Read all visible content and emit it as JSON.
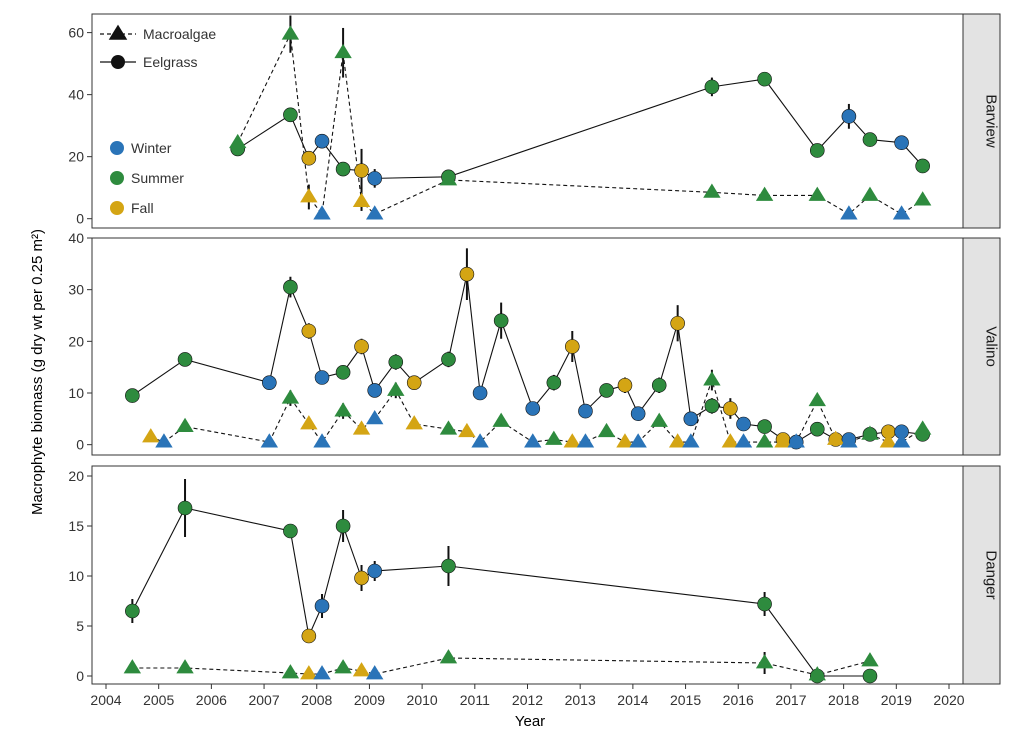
{
  "colors": {
    "Winter": "#2a74b8",
    "Summer": "#2e8b3e",
    "Fall": "#d4a514",
    "panel_border": "#333333",
    "strip_bg": "#e3e3e3"
  },
  "chart_data": {
    "type": "scatter",
    "xlabel": "Year",
    "ylabel": "Macrophyte biomass (g dry wt per 0.25 m²)",
    "xlim": [
      2004,
      2020
    ],
    "x_ticks": [
      2004,
      2005,
      2006,
      2007,
      2008,
      2009,
      2010,
      2011,
      2012,
      2013,
      2014,
      2015,
      2016,
      2017,
      2018,
      2019,
      2020
    ],
    "x_tick_labels": [
      "2004",
      "2005",
      "2006",
      "2007",
      "2008",
      "2009",
      "2010",
      "2011",
      "2012",
      "2013",
      "2014",
      "2015",
      "2016",
      "2017",
      "2018",
      "2019",
      "2020"
    ],
    "legend_type": [
      {
        "label": "Macroalgae",
        "marker": "triangle",
        "line": "dashed"
      },
      {
        "label": "Eelgrass",
        "marker": "circle",
        "line": "solid"
      }
    ],
    "legend_season": [
      {
        "label": "Winter",
        "color": "#2a74b8"
      },
      {
        "label": "Summer",
        "color": "#2e8b3e"
      },
      {
        "label": "Fall",
        "color": "#d4a514"
      }
    ],
    "panels": [
      {
        "site": "Barview",
        "ylim": [
          -3,
          66
        ],
        "y_ticks": [
          0,
          20,
          40,
          60
        ],
        "y_tick_labels": [
          "0",
          "20",
          "40",
          "60"
        ],
        "series": [
          {
            "name": "Eelgrass",
            "points": [
              {
                "x": 2006.5,
                "y": 22.5,
                "season": "Summer"
              },
              {
                "x": 2007.5,
                "y": 33.5,
                "season": "Summer",
                "err": 2
              },
              {
                "x": 2007.85,
                "y": 19.5,
                "season": "Fall"
              },
              {
                "x": 2008.1,
                "y": 25,
                "season": "Winter"
              },
              {
                "x": 2008.5,
                "y": 16,
                "season": "Summer"
              },
              {
                "x": 2008.85,
                "y": 15.5,
                "season": "Fall",
                "err": 7
              },
              {
                "x": 2009.1,
                "y": 13,
                "season": "Winter",
                "err": 3
              },
              {
                "x": 2010.5,
                "y": 13.5,
                "season": "Summer"
              },
              {
                "x": 2015.5,
                "y": 42.5,
                "season": "Summer",
                "err": 3
              },
              {
                "x": 2016.5,
                "y": 45,
                "season": "Summer",
                "err": 2
              },
              {
                "x": 2017.5,
                "y": 22,
                "season": "Summer"
              },
              {
                "x": 2018.1,
                "y": 33,
                "season": "Winter",
                "err": 4
              },
              {
                "x": 2018.5,
                "y": 25.5,
                "season": "Summer"
              },
              {
                "x": 2019.1,
                "y": 24.5,
                "season": "Winter"
              },
              {
                "x": 2019.5,
                "y": 17,
                "season": "Summer"
              }
            ]
          },
          {
            "name": "Macroalgae",
            "points": [
              {
                "x": 2006.5,
                "y": 24.5,
                "season": "Summer"
              },
              {
                "x": 2007.5,
                "y": 59.5,
                "season": "Summer",
                "err": 6
              },
              {
                "x": 2007.85,
                "y": 7,
                "season": "Fall",
                "err": 4
              },
              {
                "x": 2008.1,
                "y": 1.5,
                "season": "Winter"
              },
              {
                "x": 2008.5,
                "y": 53.5,
                "season": "Summer",
                "err": 8
              },
              {
                "x": 2008.85,
                "y": 5.5,
                "season": "Fall",
                "err": 3
              },
              {
                "x": 2009.1,
                "y": 1.5,
                "season": "Winter"
              },
              {
                "x": 2010.5,
                "y": 12.5,
                "season": "Summer"
              },
              {
                "x": 2015.5,
                "y": 8.5,
                "season": "Summer"
              },
              {
                "x": 2016.5,
                "y": 7.5,
                "season": "Summer"
              },
              {
                "x": 2017.5,
                "y": 7.5,
                "season": "Summer"
              },
              {
                "x": 2018.1,
                "y": 1.5,
                "season": "Winter"
              },
              {
                "x": 2018.5,
                "y": 7.5,
                "season": "Summer"
              },
              {
                "x": 2019.1,
                "y": 1.5,
                "season": "Winter"
              },
              {
                "x": 2019.5,
                "y": 6,
                "season": "Summer"
              }
            ]
          }
        ]
      },
      {
        "site": "Valino",
        "ylim": [
          -2,
          40
        ],
        "y_ticks": [
          0,
          10,
          20,
          30,
          40
        ],
        "y_tick_labels": [
          "0",
          "10",
          "20",
          "30",
          "40"
        ],
        "series": [
          {
            "name": "Eelgrass",
            "points": [
              {
                "x": 2004.5,
                "y": 9.5,
                "season": "Summer"
              },
              {
                "x": 2005.5,
                "y": 16.5,
                "season": "Summer"
              },
              {
                "x": 2007.1,
                "y": 12,
                "season": "Winter"
              },
              {
                "x": 2007.5,
                "y": 30.5,
                "season": "Summer",
                "err": 2
              },
              {
                "x": 2007.85,
                "y": 22,
                "season": "Fall",
                "err": 1.5
              },
              {
                "x": 2008.1,
                "y": 13,
                "season": "Winter"
              },
              {
                "x": 2008.5,
                "y": 14,
                "season": "Summer"
              },
              {
                "x": 2008.85,
                "y": 19,
                "season": "Fall",
                "err": 1.5
              },
              {
                "x": 2009.1,
                "y": 10.5,
                "season": "Winter"
              },
              {
                "x": 2009.5,
                "y": 16,
                "season": "Summer",
                "err": 1.5
              },
              {
                "x": 2009.85,
                "y": 12,
                "season": "Fall"
              },
              {
                "x": 2010.5,
                "y": 16.5,
                "season": "Summer",
                "err": 1.5
              },
              {
                "x": 2010.85,
                "y": 33,
                "season": "Fall",
                "err": 5
              },
              {
                "x": 2011.1,
                "y": 10,
                "season": "Winter"
              },
              {
                "x": 2011.5,
                "y": 24,
                "season": "Summer",
                "err": 3.5
              },
              {
                "x": 2012.1,
                "y": 7,
                "season": "Winter"
              },
              {
                "x": 2012.5,
                "y": 12,
                "season": "Summer",
                "err": 1.5
              },
              {
                "x": 2012.85,
                "y": 19,
                "season": "Fall",
                "err": 3
              },
              {
                "x": 2013.1,
                "y": 6.5,
                "season": "Winter"
              },
              {
                "x": 2013.5,
                "y": 10.5,
                "season": "Summer"
              },
              {
                "x": 2013.85,
                "y": 11.5,
                "season": "Fall",
                "err": 1.5
              },
              {
                "x": 2014.1,
                "y": 6,
                "season": "Winter"
              },
              {
                "x": 2014.5,
                "y": 11.5,
                "season": "Summer",
                "err": 1.5
              },
              {
                "x": 2014.85,
                "y": 23.5,
                "season": "Fall",
                "err": 3.5
              },
              {
                "x": 2015.1,
                "y": 5,
                "season": "Winter"
              },
              {
                "x": 2015.5,
                "y": 7.5,
                "season": "Summer",
                "err": 1.5
              },
              {
                "x": 2015.85,
                "y": 7,
                "season": "Fall",
                "err": 2
              },
              {
                "x": 2016.1,
                "y": 4,
                "season": "Winter"
              },
              {
                "x": 2016.5,
                "y": 3.5,
                "season": "Summer"
              },
              {
                "x": 2016.85,
                "y": 1,
                "season": "Fall"
              },
              {
                "x": 2017.1,
                "y": 0.5,
                "season": "Winter"
              },
              {
                "x": 2017.5,
                "y": 3,
                "season": "Summer"
              },
              {
                "x": 2017.85,
                "y": 1,
                "season": "Fall"
              },
              {
                "x": 2018.1,
                "y": 1,
                "season": "Winter"
              },
              {
                "x": 2018.5,
                "y": 2,
                "season": "Summer"
              },
              {
                "x": 2018.85,
                "y": 2.5,
                "season": "Fall"
              },
              {
                "x": 2019.1,
                "y": 2.5,
                "season": "Winter"
              },
              {
                "x": 2019.5,
                "y": 2,
                "season": "Summer"
              }
            ]
          },
          {
            "name": "Macroalgae",
            "points": [
              {
                "x": 2004.85,
                "y": 1.5,
                "season": "Fall"
              },
              {
                "x": 2005.1,
                "y": 0.5,
                "season": "Winter"
              },
              {
                "x": 2005.5,
                "y": 3.5,
                "season": "Summer"
              },
              {
                "x": 2007.1,
                "y": 0.5,
                "season": "Winter"
              },
              {
                "x": 2007.5,
                "y": 9,
                "season": "Summer",
                "err": 1.5
              },
              {
                "x": 2007.85,
                "y": 4,
                "season": "Fall"
              },
              {
                "x": 2008.1,
                "y": 0.5,
                "season": "Winter"
              },
              {
                "x": 2008.5,
                "y": 6.5,
                "season": "Summer",
                "err": 1.5
              },
              {
                "x": 2008.85,
                "y": 3,
                "season": "Fall"
              },
              {
                "x": 2009.1,
                "y": 5,
                "season": "Winter"
              },
              {
                "x": 2009.5,
                "y": 10.5,
                "season": "Summer",
                "err": 1.5
              },
              {
                "x": 2009.85,
                "y": 4,
                "season": "Fall"
              },
              {
                "x": 2010.5,
                "y": 3,
                "season": "Summer"
              },
              {
                "x": 2010.85,
                "y": 2.5,
                "season": "Fall"
              },
              {
                "x": 2011.1,
                "y": 0.5,
                "season": "Winter"
              },
              {
                "x": 2011.5,
                "y": 4.5,
                "season": "Summer"
              },
              {
                "x": 2012.1,
                "y": 0.5,
                "season": "Winter"
              },
              {
                "x": 2012.5,
                "y": 1,
                "season": "Summer"
              },
              {
                "x": 2012.85,
                "y": 0.5,
                "season": "Fall"
              },
              {
                "x": 2013.1,
                "y": 0.5,
                "season": "Winter"
              },
              {
                "x": 2013.5,
                "y": 2.5,
                "season": "Summer"
              },
              {
                "x": 2013.85,
                "y": 0.5,
                "season": "Fall"
              },
              {
                "x": 2014.1,
                "y": 0.5,
                "season": "Winter"
              },
              {
                "x": 2014.5,
                "y": 4.5,
                "season": "Summer"
              },
              {
                "x": 2014.85,
                "y": 0.5,
                "season": "Fall"
              },
              {
                "x": 2015.1,
                "y": 0.5,
                "season": "Winter"
              },
              {
                "x": 2015.5,
                "y": 12.5,
                "season": "Summer",
                "err": 2
              },
              {
                "x": 2015.85,
                "y": 0.5,
                "season": "Fall"
              },
              {
                "x": 2016.1,
                "y": 0.5,
                "season": "Winter"
              },
              {
                "x": 2016.5,
                "y": 0.5,
                "season": "Summer"
              },
              {
                "x": 2016.85,
                "y": 0.5,
                "season": "Fall"
              },
              {
                "x": 2017.1,
                "y": 0.5,
                "season": "Winter"
              },
              {
                "x": 2017.5,
                "y": 8.5,
                "season": "Summer"
              },
              {
                "x": 2017.85,
                "y": 1,
                "season": "Fall"
              },
              {
                "x": 2018.1,
                "y": 0.5,
                "season": "Winter"
              },
              {
                "x": 2018.5,
                "y": 2,
                "season": "Summer"
              },
              {
                "x": 2018.85,
                "y": 0.5,
                "season": "Fall"
              },
              {
                "x": 2019.1,
                "y": 0.5,
                "season": "Winter"
              },
              {
                "x": 2019.5,
                "y": 3,
                "season": "Summer"
              }
            ]
          }
        ]
      },
      {
        "site": "Danger",
        "ylim": [
          -0.8,
          21
        ],
        "y_ticks": [
          0,
          5,
          10,
          15,
          20
        ],
        "y_tick_labels": [
          "0",
          "5",
          "10",
          "15",
          "20"
        ],
        "series": [
          {
            "name": "Eelgrass",
            "points": [
              {
                "x": 2004.5,
                "y": 6.5,
                "season": "Summer",
                "err": 1.2
              },
              {
                "x": 2005.5,
                "y": 16.8,
                "season": "Summer",
                "err": 2.9
              },
              {
                "x": 2007.5,
                "y": 14.5,
                "season": "Summer",
                "err": 0.7
              },
              {
                "x": 2007.85,
                "y": 4,
                "season": "Fall"
              },
              {
                "x": 2008.1,
                "y": 7,
                "season": "Winter",
                "err": 1.2
              },
              {
                "x": 2008.5,
                "y": 15,
                "season": "Summer",
                "err": 1.6
              },
              {
                "x": 2008.85,
                "y": 9.8,
                "season": "Fall",
                "err": 1.3
              },
              {
                "x": 2009.1,
                "y": 10.5,
                "season": "Winter",
                "err": 1
              },
              {
                "x": 2010.5,
                "y": 11,
                "season": "Summer",
                "err": 2
              },
              {
                "x": 2016.5,
                "y": 7.2,
                "season": "Summer",
                "err": 1.2
              },
              {
                "x": 2017.5,
                "y": 0,
                "season": "Summer"
              },
              {
                "x": 2018.5,
                "y": 0,
                "season": "Summer"
              }
            ]
          },
          {
            "name": "Macroalgae",
            "points": [
              {
                "x": 2004.5,
                "y": 0.8,
                "season": "Summer"
              },
              {
                "x": 2005.5,
                "y": 0.8,
                "season": "Summer"
              },
              {
                "x": 2007.5,
                "y": 0.3,
                "season": "Summer"
              },
              {
                "x": 2007.85,
                "y": 0.2,
                "season": "Fall"
              },
              {
                "x": 2008.1,
                "y": 0.2,
                "season": "Winter"
              },
              {
                "x": 2008.5,
                "y": 0.8,
                "season": "Summer"
              },
              {
                "x": 2008.85,
                "y": 0.5,
                "season": "Fall"
              },
              {
                "x": 2009.1,
                "y": 0.2,
                "season": "Winter"
              },
              {
                "x": 2010.5,
                "y": 1.8,
                "season": "Summer"
              },
              {
                "x": 2016.5,
                "y": 1.3,
                "season": "Summer",
                "err": 1.1
              },
              {
                "x": 2017.5,
                "y": 0.1,
                "season": "Summer"
              },
              {
                "x": 2018.5,
                "y": 1.5,
                "season": "Summer"
              }
            ]
          }
        ]
      }
    ]
  }
}
